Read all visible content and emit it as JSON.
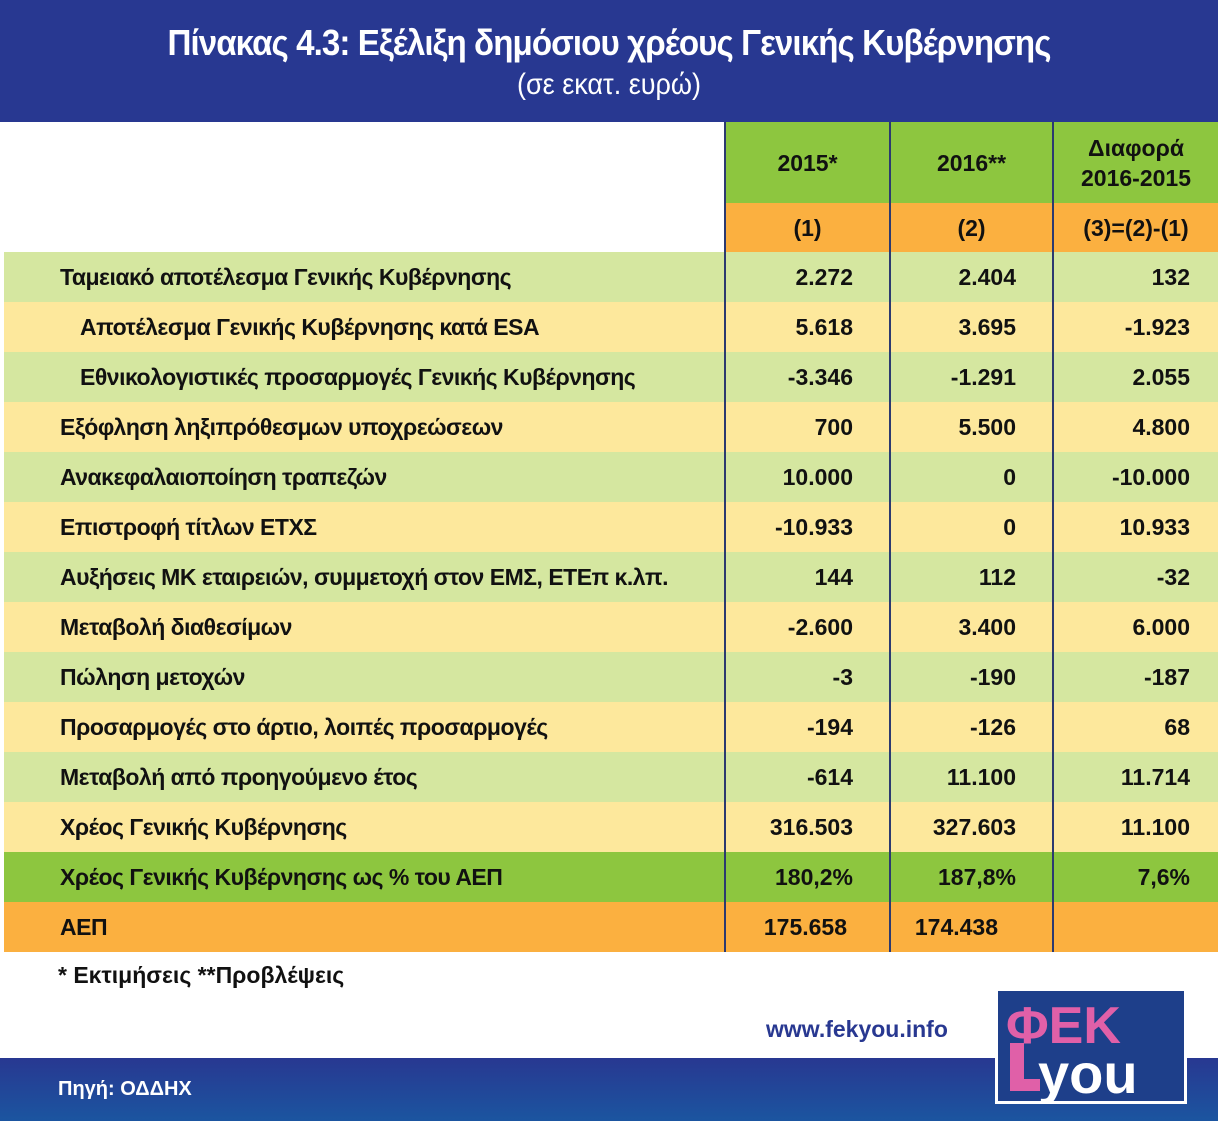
{
  "header": {
    "title": "Πίνακας 4.3:  Εξέλιξη δημόσιου χρέους Γενικής Κυβέρνησης",
    "subtitle": "(σε εκατ. ευρώ)"
  },
  "colors": {
    "header": "#283891",
    "row_green": "#d5e7a0",
    "row_yellow": "#fde89c",
    "accent_green": "#8dc63f",
    "accent_orange": "#fbb040"
  },
  "chart_data": {
    "type": "table",
    "columns": [
      "2015*",
      "2016**",
      "Διαφορά 2016-2015"
    ],
    "column_codes": [
      "(1)",
      "(2)",
      "(3)=(2)-(1)"
    ],
    "rows": [
      {
        "label": "Ταμειακό αποτέλεσμα Γενικής Κυβέρνησης",
        "values": [
          "2.272",
          "2.404",
          "132"
        ]
      },
      {
        "label": "Αποτέλεσμα Γενικής Κυβέρνησης κατά ESA",
        "values": [
          "5.618",
          "3.695",
          "-1.923"
        ],
        "indent": true
      },
      {
        "label": "Εθνικολογιστικές προσαρμογές Γενικής Κυβέρνησης",
        "values": [
          "-3.346",
          "-1.291",
          "2.055"
        ],
        "indent": true
      },
      {
        "label": "Εξόφληση ληξιπρόθεσμων υποχρεώσεων",
        "values": [
          "700",
          "5.500",
          "4.800"
        ]
      },
      {
        "label": "Ανακεφαλαιοποίηση τραπεζών",
        "values": [
          "10.000",
          "0",
          "-10.000"
        ]
      },
      {
        "label": "Επιστροφή τίτλων ΕΤΧΣ",
        "values": [
          "-10.933",
          "0",
          "10.933"
        ]
      },
      {
        "label": "Αυξήσεις ΜΚ εταιρειών, συμμετοχή στον ΕΜΣ, ΕΤΕπ κ.λπ.",
        "values": [
          "144",
          "112",
          "-32"
        ]
      },
      {
        "label": "Μεταβολή διαθεσίμων",
        "values": [
          "-2.600",
          "3.400",
          "6.000"
        ]
      },
      {
        "label": "Πώληση μετοχών",
        "values": [
          "-3",
          "-190",
          "-187"
        ]
      },
      {
        "label": "Προσαρμογές στο άρτιο, λοιπές προσαρμογές",
        "values": [
          "-194",
          "-126",
          "68"
        ]
      },
      {
        "label": "Μεταβολή από προηγούμενο έτος",
        "values": [
          "-614",
          "11.100",
          "11.714"
        ]
      },
      {
        "label": "Χρέος Γενικής Κυβέρνησης",
        "values": [
          "316.503",
          "327.603",
          "11.100"
        ]
      },
      {
        "label": "Χρέος Γενικής Κυβέρνησης ως % του ΑΕΠ",
        "values": [
          "180,2%",
          "187,8%",
          "7,6%"
        ]
      },
      {
        "label": "ΑΕΠ",
        "values": [
          "175.658",
          "174.438",
          ""
        ]
      }
    ]
  },
  "footer": {
    "note": "* Εκτιμήσεις **Προβλέψεις",
    "url": "www.fekyou.info",
    "source": "Πηγή: ΟΔΔΗΧ",
    "logo_text": "ΦΕΚ YOU"
  }
}
